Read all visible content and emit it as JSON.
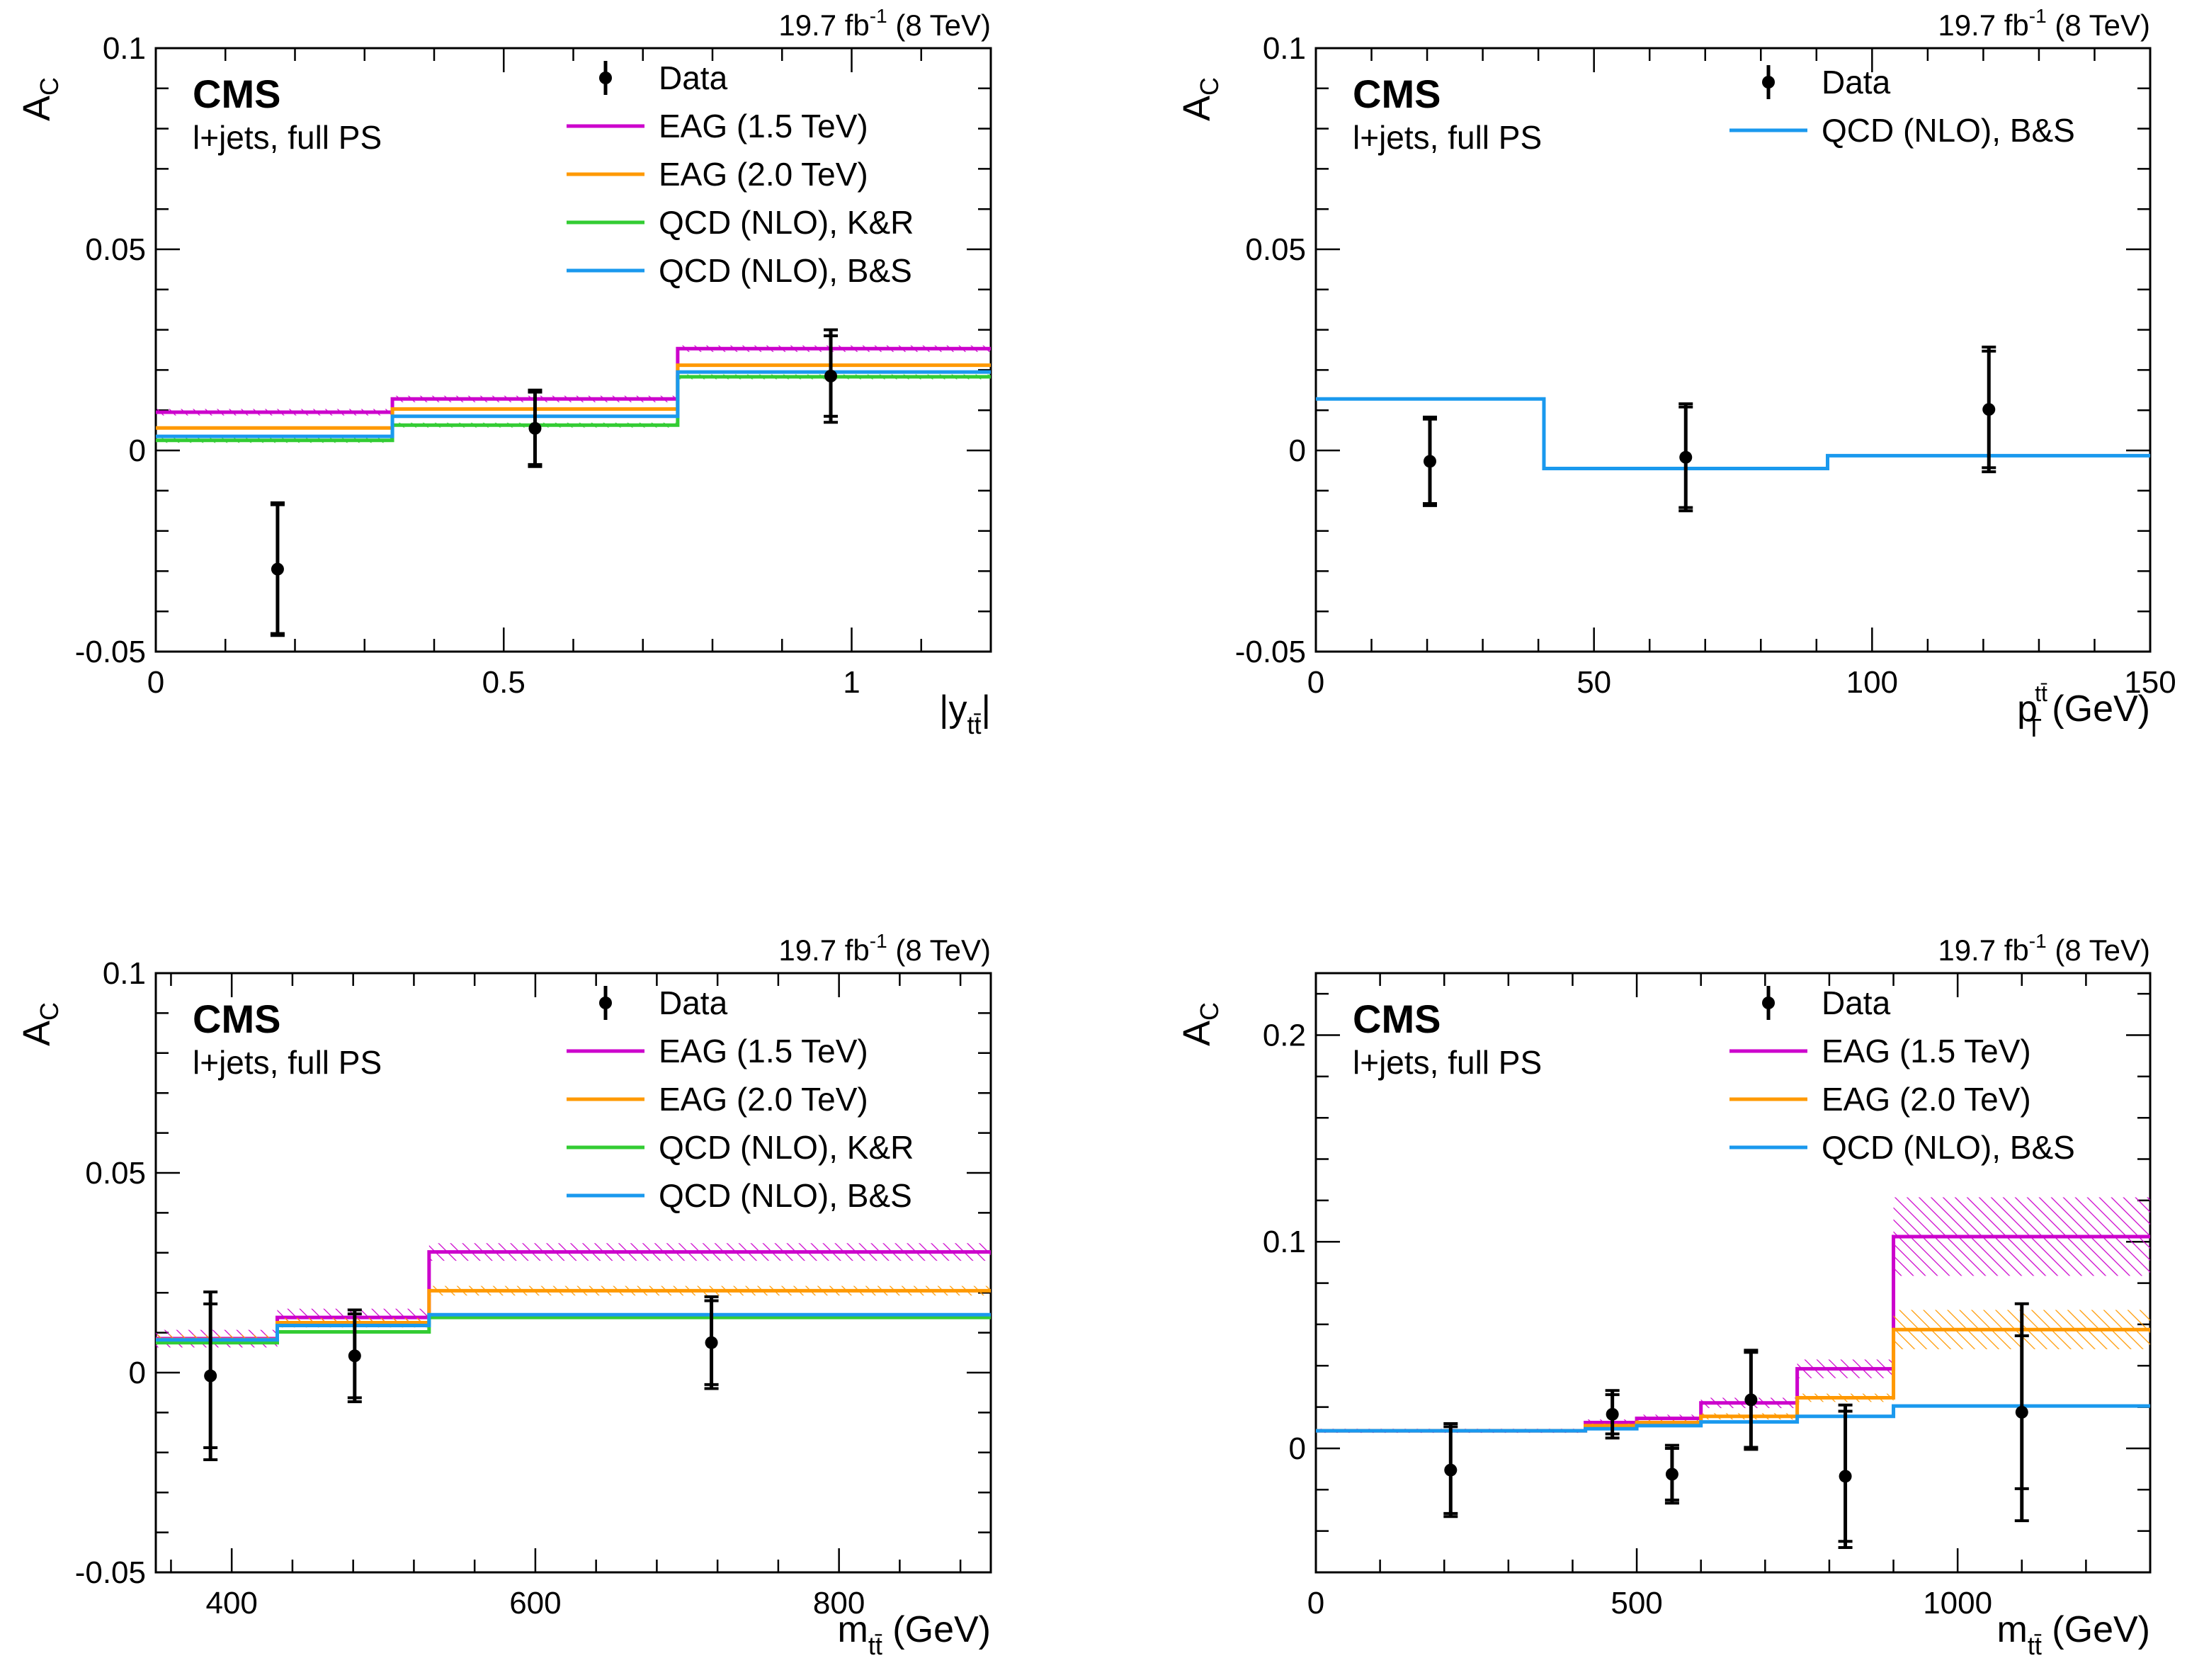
{
  "chart_data": [
    {
      "type": "line",
      "plot": "top-left",
      "lumi": {
        "value": "19.7 fb",
        "exp": "-1",
        "energy": "(8 TeV)"
      },
      "experiment": "CMS",
      "channel": "l+jets, full PS",
      "ylabel": {
        "main": "A",
        "sub": "C"
      },
      "xlabel": {
        "pre": "|y",
        "sub": "tt̄",
        "post": "|"
      },
      "xlim": [
        0,
        1.2
      ],
      "ylim": [
        -0.05,
        0.1
      ],
      "xticks": [
        0,
        0.5,
        1
      ],
      "xtick_labels": [
        "0",
        "0.5",
        "1"
      ],
      "yticks": [
        -0.05,
        0,
        0.05,
        0.1
      ],
      "ytick_labels": [
        "-0.05",
        "0",
        "0.05",
        "0.1"
      ],
      "legend": {
        "placement": "top-right"
      },
      "bin_edges": [
        0,
        0.34,
        0.75,
        1.2
      ],
      "series": [
        {
          "name": "EAG (1.5 TeV)",
          "color": "#cc00cc",
          "values": [
            0.0095,
            0.0128,
            0.0253
          ],
          "band": 0.0008
        },
        {
          "name": "EAG (2.0 TeV)",
          "color": "#ff9900",
          "values": [
            0.0056,
            0.0103,
            0.0212
          ]
        },
        {
          "name": "QCD (NLO), K&R",
          "color": "#33cc33",
          "values": [
            0.0025,
            0.0063,
            0.0183
          ],
          "band": 0.0006
        },
        {
          "name": "QCD (NLO), B&S",
          "color": "#1a99ee",
          "values": [
            0.0035,
            0.0085,
            0.0195
          ]
        }
      ],
      "data_points": {
        "name": "Data",
        "x": [
          0.175,
          0.545,
          0.97
        ],
        "y": [
          -0.0295,
          0.0055,
          0.0185
        ],
        "err_inner": [
          0.016,
          0.009,
          0.01
        ],
        "err_outer": [
          0.0165,
          0.0095,
          0.0115
        ]
      }
    },
    {
      "type": "line",
      "plot": "top-right",
      "lumi": {
        "value": "19.7 fb",
        "exp": "-1",
        "energy": "(8 TeV)"
      },
      "experiment": "CMS",
      "channel": "l+jets, full PS",
      "ylabel": {
        "main": "A",
        "sub": "C"
      },
      "xlabel": {
        "pre": "p",
        "sub": "T",
        "sup": "tt̄",
        "post": " (GeV)"
      },
      "xlim": [
        0,
        150
      ],
      "ylim": [
        -0.05,
        0.1
      ],
      "xticks": [
        0,
        50,
        100,
        150
      ],
      "xtick_labels": [
        "0",
        "50",
        "100",
        "150"
      ],
      "yticks": [
        -0.05,
        0,
        0.05,
        0.1
      ],
      "ytick_labels": [
        "-0.05",
        "0",
        "0.05",
        "0.1"
      ],
      "legend": {
        "placement": "top-right"
      },
      "bin_edges": [
        0,
        41,
        92,
        150
      ],
      "series": [
        {
          "name": "QCD (NLO), B&S",
          "color": "#1a99ee",
          "values": [
            0.0128,
            -0.0045,
            -0.0013
          ]
        }
      ],
      "data_points": {
        "name": "Data",
        "x": [
          20.5,
          66.5,
          121
        ],
        "y": [
          -0.0027,
          -0.0017,
          0.0102
        ],
        "err_inner": [
          0.0105,
          0.0125,
          0.0145
        ],
        "err_outer": [
          0.011,
          0.0133,
          0.0155
        ]
      }
    },
    {
      "type": "line",
      "plot": "bottom-left",
      "lumi": {
        "value": "19.7 fb",
        "exp": "-1",
        "energy": "(8 TeV)"
      },
      "experiment": "CMS",
      "channel": "l+jets, full PS",
      "ylabel": {
        "main": "A",
        "sub": "C"
      },
      "xlabel": {
        "pre": "m",
        "sub": "tt̄",
        "post": " (GeV)"
      },
      "xlim": [
        350,
        900
      ],
      "ylim": [
        -0.05,
        0.1
      ],
      "xticks": [
        400,
        600,
        800
      ],
      "xtick_labels": [
        "400",
        "600",
        "800"
      ],
      "yticks": [
        -0.05,
        0,
        0.05,
        0.1
      ],
      "ytick_labels": [
        "-0.05",
        "0",
        "0.05",
        "0.1"
      ],
      "legend": {
        "placement": "top-right"
      },
      "bin_edges": [
        350,
        430,
        530,
        900
      ],
      "series": [
        {
          "name": "EAG (1.5 TeV)",
          "color": "#cc00cc",
          "values": [
            0.0085,
            0.0138,
            0.0302
          ],
          "band": 0.0022
        },
        {
          "name": "EAG (2.0 TeV)",
          "color": "#ff9900",
          "values": [
            0.0083,
            0.0125,
            0.0205
          ],
          "band": 0.0012
        },
        {
          "name": "QCD (NLO), K&R",
          "color": "#33cc33",
          "values": [
            0.0075,
            0.0102,
            0.0138
          ]
        },
        {
          "name": "QCD (NLO), B&S",
          "color": "#1a99ee",
          "values": [
            0.0082,
            0.0118,
            0.0145
          ]
        }
      ],
      "data_points": {
        "name": "Data",
        "x": [
          386,
          481,
          716
        ],
        "y": [
          -0.0008,
          0.0042,
          0.0075
        ],
        "err_inner": [
          0.018,
          0.0105,
          0.0105
        ],
        "err_outer": [
          0.021,
          0.0115,
          0.0115
        ]
      }
    },
    {
      "type": "line",
      "plot": "bottom-right",
      "lumi": {
        "value": "19.7 fb",
        "exp": "-1",
        "energy": "(8 TeV)"
      },
      "experiment": "CMS",
      "channel": "l+jets, full PS",
      "ylabel": {
        "main": "A",
        "sub": "C"
      },
      "xlabel": {
        "pre": "m",
        "sub": "tt̄",
        "post": " (GeV)"
      },
      "xlim": [
        0,
        1300
      ],
      "ylim": [
        -0.06,
        0.23
      ],
      "xticks": [
        0,
        500,
        1000
      ],
      "xtick_labels": [
        "0",
        "500",
        "1000"
      ],
      "yticks": [
        0,
        0.1,
        0.2
      ],
      "ytick_labels": [
        "0",
        "0.1",
        "0.2"
      ],
      "legend": {
        "placement": "top-right"
      },
      "bin_edges": [
        0,
        420,
        500,
        600,
        750,
        900,
        1300
      ],
      "series": [
        {
          "name": "EAG (1.5 TeV)",
          "color": "#cc00cc",
          "values": [
            0.0085,
            0.0125,
            0.0145,
            0.022,
            0.0385,
            0.1025
          ],
          "band": [
            0.001,
            0.0015,
            0.0018,
            0.0025,
            0.0045,
            0.019
          ]
        },
        {
          "name": "EAG (2.0 TeV)",
          "color": "#ff9900",
          "values": [
            0.0085,
            0.011,
            0.0125,
            0.0155,
            0.0245,
            0.0575
          ],
          "band": [
            0.0008,
            0.001,
            0.0012,
            0.0015,
            0.002,
            0.0095
          ]
        },
        {
          "name": "QCD (NLO), B&S",
          "color": "#1a99ee",
          "values": [
            0.0085,
            0.0095,
            0.011,
            0.0128,
            0.0155,
            0.0205
          ]
        }
      ],
      "data_points": {
        "name": "Data",
        "x": [
          210,
          462,
          555,
          678,
          825,
          1100
        ],
        "y": [
          -0.0105,
          0.0165,
          -0.0125,
          0.0235,
          -0.0135,
          0.0175
        ],
        "err_inner": [
          0.021,
          0.0095,
          0.0125,
          0.023,
          0.0315,
          0.037
        ],
        "err_outer": [
          0.0225,
          0.0115,
          0.014,
          0.024,
          0.0345,
          0.0525
        ]
      }
    }
  ]
}
